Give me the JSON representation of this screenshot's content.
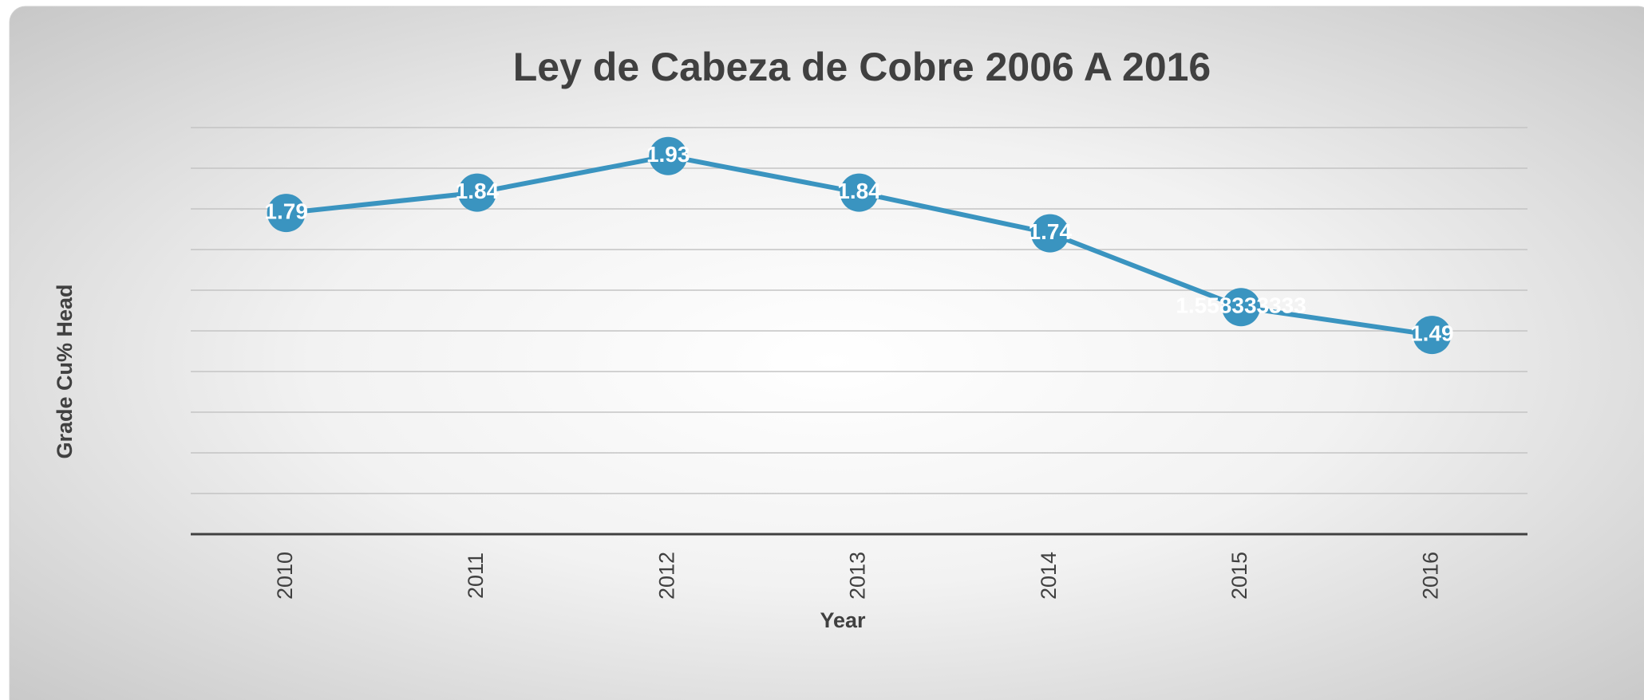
{
  "chart_data": {
    "type": "line",
    "title": "Ley de Cabeza de Cobre 2006 A 2016",
    "x_label": "Year",
    "y_label": "Grade  Cu%  Head",
    "categories": [
      "2010",
      "2011",
      "2012",
      "2013",
      "2014",
      "2015",
      "2016"
    ],
    "series": [
      {
        "name": "Grade Cu% Head",
        "color": "#3a94c0",
        "values": [
          1.79,
          1.84,
          1.93,
          1.84,
          1.74,
          1.558333333,
          1.49
        ]
      }
    ],
    "ylim": [
      1,
      2
    ],
    "yticks": [
      1,
      1.1,
      1.2,
      1.3,
      1.4,
      1.5,
      1.6,
      1.7,
      1.8,
      1.9,
      2
    ],
    "grid": true
  }
}
